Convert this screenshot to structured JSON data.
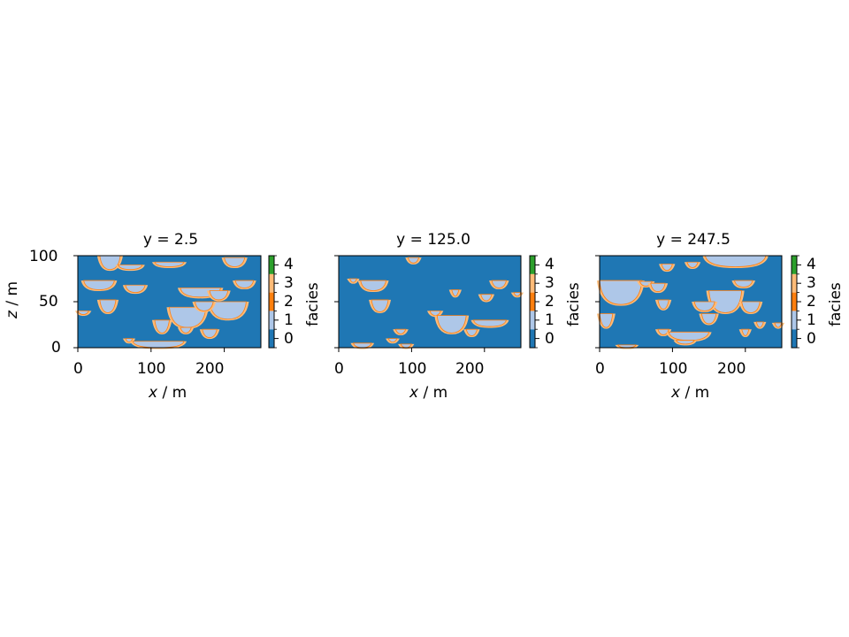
{
  "chart_data": [
    {
      "type": "heatmap",
      "title": "y = 2.5",
      "xlabel": "x / m",
      "ylabel": "z / m",
      "xlim": [
        0,
        250
      ],
      "ylim": [
        0,
        100
      ],
      "xticks": [
        "0",
        "100",
        "200"
      ],
      "yticks": [
        "0",
        "50",
        "100"
      ],
      "colorbar": {
        "label": "facies",
        "ticks": [
          "0",
          "1",
          "2",
          "3",
          "4"
        ]
      },
      "background_facies": 0,
      "features": [
        {
          "facies": 1,
          "x": [
            30,
            58
          ],
          "ztop": 100,
          "zbot": 85
        },
        {
          "facies": 1,
          "x": [
            55,
            88
          ],
          "ztop": 90,
          "zbot": 85
        },
        {
          "facies": 1,
          "x": [
            105,
            145
          ],
          "ztop": 93,
          "zbot": 88
        },
        {
          "facies": 1,
          "x": [
            200,
            228
          ],
          "ztop": 98,
          "zbot": 88
        },
        {
          "facies": 1,
          "x": [
            8,
            50
          ],
          "ztop": 73,
          "zbot": 63
        },
        {
          "facies": 1,
          "x": [
            65,
            92
          ],
          "ztop": 68,
          "zbot": 60
        },
        {
          "facies": 1,
          "x": [
            215,
            240
          ],
          "ztop": 73,
          "zbot": 65
        },
        {
          "facies": 1,
          "x": [
            140,
            195
          ],
          "ztop": 65,
          "zbot": 55
        },
        {
          "facies": 1,
          "x": [
            180,
            205
          ],
          "ztop": 62,
          "zbot": 52
        },
        {
          "facies": 1,
          "x": [
            30,
            52
          ],
          "ztop": 52,
          "zbot": 38
        },
        {
          "facies": 1,
          "x": [
            0,
            15
          ],
          "ztop": 40,
          "zbot": 36
        },
        {
          "facies": 1,
          "x": [
            125,
            175
          ],
          "ztop": 44,
          "zbot": 22
        },
        {
          "facies": 1,
          "x": [
            180,
            230
          ],
          "ztop": 50,
          "zbot": 31
        },
        {
          "facies": 1,
          "x": [
            160,
            185
          ],
          "ztop": 50,
          "zbot": 40
        },
        {
          "facies": 1,
          "x": [
            105,
            125
          ],
          "ztop": 30,
          "zbot": 16
        },
        {
          "facies": 1,
          "x": [
            170,
            190
          ],
          "ztop": 20,
          "zbot": 11
        },
        {
          "facies": 1,
          "x": [
            140,
            155
          ],
          "ztop": 22,
          "zbot": 16
        },
        {
          "facies": 1,
          "x": [
            65,
            75
          ],
          "ztop": 10,
          "zbot": 6
        },
        {
          "facies": 1,
          "x": [
            75,
            145
          ],
          "ztop": 7,
          "zbot": 0
        }
      ]
    },
    {
      "type": "heatmap",
      "title": "y = 125.0",
      "xlabel": "x / m",
      "xlim": [
        0,
        250
      ],
      "ylim": [
        0,
        100
      ],
      "xticks": [
        "0",
        "100",
        "200"
      ],
      "colorbar": {
        "label": "facies",
        "ticks": [
          "0",
          "1",
          "2",
          "3",
          "4"
        ]
      },
      "background_facies": 0,
      "features": [
        {
          "facies": 1,
          "x": [
            95,
            110
          ],
          "ztop": 98,
          "zbot": 92
        },
        {
          "facies": 1,
          "x": [
            15,
            25
          ],
          "ztop": 75,
          "zbot": 71
        },
        {
          "facies": 1,
          "x": [
            30,
            65
          ],
          "ztop": 73,
          "zbot": 62
        },
        {
          "facies": 1,
          "x": [
            45,
            68
          ],
          "ztop": 52,
          "zbot": 39
        },
        {
          "facies": 1,
          "x": [
            210,
            230
          ],
          "ztop": 73,
          "zbot": 65
        },
        {
          "facies": 1,
          "x": [
            155,
            165
          ],
          "ztop": 63,
          "zbot": 56
        },
        {
          "facies": 1,
          "x": [
            195,
            210
          ],
          "ztop": 58,
          "zbot": 51
        },
        {
          "facies": 1,
          "x": [
            240,
            250
          ],
          "ztop": 60,
          "zbot": 56
        },
        {
          "facies": 1,
          "x": [
            125,
            140
          ],
          "ztop": 40,
          "zbot": 35
        },
        {
          "facies": 1,
          "x": [
            135,
            175
          ],
          "ztop": 35,
          "zbot": 16
        },
        {
          "facies": 1,
          "x": [
            185,
            230
          ],
          "ztop": 30,
          "zbot": 23
        },
        {
          "facies": 1,
          "x": [
            175,
            190
          ],
          "ztop": 20,
          "zbot": 13
        },
        {
          "facies": 1,
          "x": [
            78,
            92
          ],
          "ztop": 20,
          "zbot": 15
        },
        {
          "facies": 1,
          "x": [
            68,
            80
          ],
          "ztop": 10,
          "zbot": 6
        },
        {
          "facies": 1,
          "x": [
            20,
            45
          ],
          "ztop": 5,
          "zbot": 0
        },
        {
          "facies": 1,
          "x": [
            85,
            100
          ],
          "ztop": 4,
          "zbot": 0
        }
      ]
    },
    {
      "type": "heatmap",
      "title": "y = 247.5",
      "xlabel": "x / m",
      "xlim": [
        0,
        250
      ],
      "ylim": [
        0,
        100
      ],
      "xticks": [
        "0",
        "100",
        "200"
      ],
      "colorbar": {
        "label": "facies",
        "ticks": [
          "0",
          "1",
          "2",
          "3",
          "4"
        ]
      },
      "background_facies": 0,
      "features": [
        {
          "facies": 1,
          "x": [
            145,
            228
          ],
          "ztop": 100,
          "zbot": 88
        },
        {
          "facies": 1,
          "x": [
            85,
            100
          ],
          "ztop": 91,
          "zbot": 84
        },
        {
          "facies": 1,
          "x": [
            120,
            135
          ],
          "ztop": 93,
          "zbot": 87
        },
        {
          "facies": 1,
          "x": [
            0,
            58
          ],
          "ztop": 73,
          "zbot": 47
        },
        {
          "facies": 1,
          "x": [
            55,
            72
          ],
          "ztop": 72,
          "zbot": 67
        },
        {
          "facies": 1,
          "x": [
            70,
            90
          ],
          "ztop": 70,
          "zbot": 61
        },
        {
          "facies": 1,
          "x": [
            80,
            95
          ],
          "ztop": 52,
          "zbot": 42
        },
        {
          "facies": 1,
          "x": [
            185,
            210
          ],
          "ztop": 73,
          "zbot": 66
        },
        {
          "facies": 1,
          "x": [
            150,
            195
          ],
          "ztop": 62,
          "zbot": 38
        },
        {
          "facies": 1,
          "x": [
            130,
            158
          ],
          "ztop": 50,
          "zbot": 40
        },
        {
          "facies": 1,
          "x": [
            195,
            220
          ],
          "ztop": 50,
          "zbot": 38
        },
        {
          "facies": 1,
          "x": [
            140,
            160
          ],
          "ztop": 37,
          "zbot": 26
        },
        {
          "facies": 1,
          "x": [
            0,
            18
          ],
          "ztop": 37,
          "zbot": 22
        },
        {
          "facies": 1,
          "x": [
            80,
            95
          ],
          "ztop": 20,
          "zbot": 14
        },
        {
          "facies": 1,
          "x": [
            95,
            150
          ],
          "ztop": 17,
          "zbot": 8
        },
        {
          "facies": 1,
          "x": [
            105,
            130
          ],
          "ztop": 8,
          "zbot": 4
        },
        {
          "facies": 1,
          "x": [
            195,
            205
          ],
          "ztop": 20,
          "zbot": 13
        },
        {
          "facies": 1,
          "x": [
            215,
            225
          ],
          "ztop": 28,
          "zbot": 22
        },
        {
          "facies": 1,
          "x": [
            240,
            250
          ],
          "ztop": 27,
          "zbot": 22
        },
        {
          "facies": 1,
          "x": [
            25,
            50
          ],
          "ztop": 3,
          "zbot": 0
        }
      ]
    }
  ],
  "colors": {
    "facies_0": "#1f77b4",
    "facies_1": "#aec7e8",
    "facies_2": "#ff7f0e",
    "facies_3": "#ffbb78",
    "facies_4": "#2ca02c"
  },
  "panels": [
    {
      "title": "y = 2.5",
      "xlabel_var": "x",
      "xlabel_unit": " / m",
      "ylabel_var": "z",
      "ylabel_unit": " / m",
      "cb_label": "facies"
    },
    {
      "title": "y = 125.0",
      "xlabel_var": "x",
      "xlabel_unit": " / m",
      "cb_label": "facies"
    },
    {
      "title": "y = 247.5",
      "xlabel_var": "x",
      "xlabel_unit": " / m",
      "cb_label": "facies"
    }
  ],
  "ticks": {
    "x": [
      "0",
      "100",
      "200"
    ],
    "y": [
      "0",
      "50",
      "100"
    ],
    "cb": [
      "0",
      "1",
      "2",
      "3",
      "4"
    ]
  }
}
